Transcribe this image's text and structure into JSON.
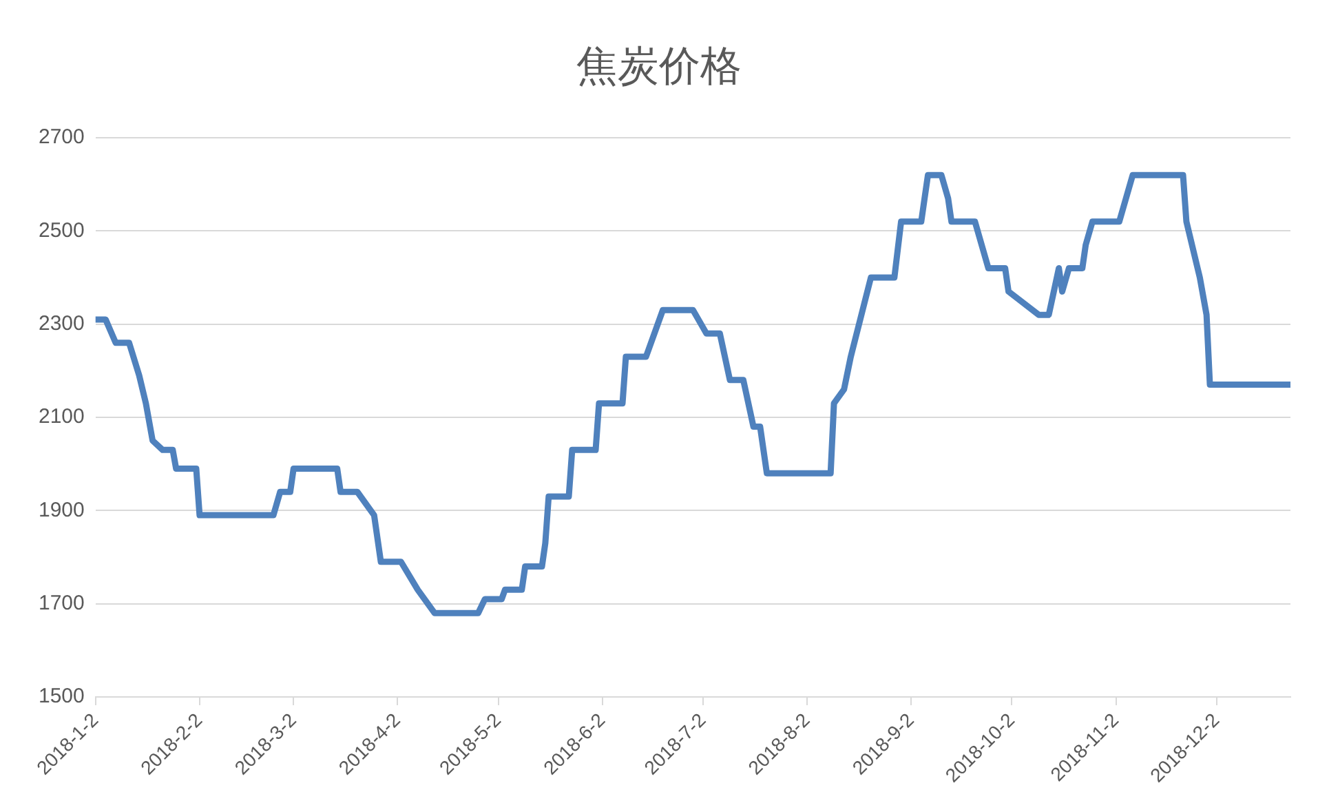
{
  "chart_data": {
    "type": "line",
    "title": "焦炭价格",
    "x": [
      "2018-01-02",
      "2018-01-05",
      "2018-01-08",
      "2018-01-12",
      "2018-01-15",
      "2018-01-17",
      "2018-01-19",
      "2018-01-22",
      "2018-01-25",
      "2018-01-26",
      "2018-02-01",
      "2018-02-02",
      "2018-02-24",
      "2018-02-26",
      "2018-03-01",
      "2018-03-02",
      "2018-03-15",
      "2018-03-16",
      "2018-03-21",
      "2018-03-26",
      "2018-03-28",
      "2018-04-03",
      "2018-04-08",
      "2018-04-13",
      "2018-04-26",
      "2018-04-28",
      "2018-05-03",
      "2018-05-04",
      "2018-05-09",
      "2018-05-10",
      "2018-05-15",
      "2018-05-16",
      "2018-05-17",
      "2018-05-23",
      "2018-05-24",
      "2018-05-31",
      "2018-06-01",
      "2018-06-08",
      "2018-06-09",
      "2018-06-15",
      "2018-06-20",
      "2018-06-29",
      "2018-07-03",
      "2018-07-07",
      "2018-07-10",
      "2018-07-14",
      "2018-07-17",
      "2018-07-19",
      "2018-07-21",
      "2018-08-09",
      "2018-08-10",
      "2018-08-13",
      "2018-08-15",
      "2018-08-21",
      "2018-08-28",
      "2018-08-30",
      "2018-09-05",
      "2018-09-06",
      "2018-09-07",
      "2018-09-11",
      "2018-09-13",
      "2018-09-14",
      "2018-09-21",
      "2018-09-25",
      "2018-09-30",
      "2018-10-01",
      "2018-10-10",
      "2018-10-13",
      "2018-10-16",
      "2018-10-17",
      "2018-10-19",
      "2018-10-23",
      "2018-10-24",
      "2018-10-26",
      "2018-11-03",
      "2018-11-05",
      "2018-11-07",
      "2018-11-22",
      "2018-11-23",
      "2018-11-27",
      "2018-11-29",
      "2018-11-30",
      "2018-12-24"
    ],
    "series": [
      {
        "color": "#4f81bd",
        "values": [
          2310,
          2310,
          2260,
          2260,
          2190,
          2130,
          2050,
          2030,
          2030,
          1990,
          1990,
          1890,
          1890,
          1940,
          1940,
          1990,
          1990,
          1940,
          1940,
          1890,
          1790,
          1790,
          1730,
          1680,
          1680,
          1710,
          1710,
          1730,
          1730,
          1780,
          1780,
          1830,
          1930,
          1930,
          2030,
          2030,
          2130,
          2130,
          2230,
          2230,
          2330,
          2330,
          2280,
          2280,
          2180,
          2180,
          2080,
          2080,
          1980,
          1980,
          2130,
          2160,
          2230,
          2400,
          2400,
          2520,
          2520,
          2570,
          2620,
          2620,
          2570,
          2520,
          2520,
          2420,
          2420,
          2370,
          2320,
          2320,
          2420,
          2370,
          2420,
          2420,
          2470,
          2520,
          2520,
          2570,
          2620,
          2620,
          2520,
          2400,
          2320,
          2170,
          2170
        ]
      }
    ],
    "xlim": [
      "2018-01-02",
      "2018-12-24"
    ],
    "xticks": [
      {
        "value": "2018-01-02",
        "label": "2018-1-2"
      },
      {
        "value": "2018-02-02",
        "label": "2018-2-2"
      },
      {
        "value": "2018-03-02",
        "label": "2018-3-2"
      },
      {
        "value": "2018-04-02",
        "label": "2018-4-2"
      },
      {
        "value": "2018-05-02",
        "label": "2018-5-2"
      },
      {
        "value": "2018-06-02",
        "label": "2018-6-2"
      },
      {
        "value": "2018-07-02",
        "label": "2018-7-2"
      },
      {
        "value": "2018-08-02",
        "label": "2018-8-2"
      },
      {
        "value": "2018-09-02",
        "label": "2018-9-2"
      },
      {
        "value": "2018-10-02",
        "label": "2018-10-2"
      },
      {
        "value": "2018-11-02",
        "label": "2018-11-2"
      },
      {
        "value": "2018-12-02",
        "label": "2018-12-2"
      }
    ],
    "ylim": [
      1500,
      2700
    ],
    "yticks": [
      1500,
      1700,
      1900,
      2100,
      2300,
      2500,
      2700
    ],
    "grid": "y",
    "legend": false,
    "marker": "none",
    "line_style": "solid"
  }
}
